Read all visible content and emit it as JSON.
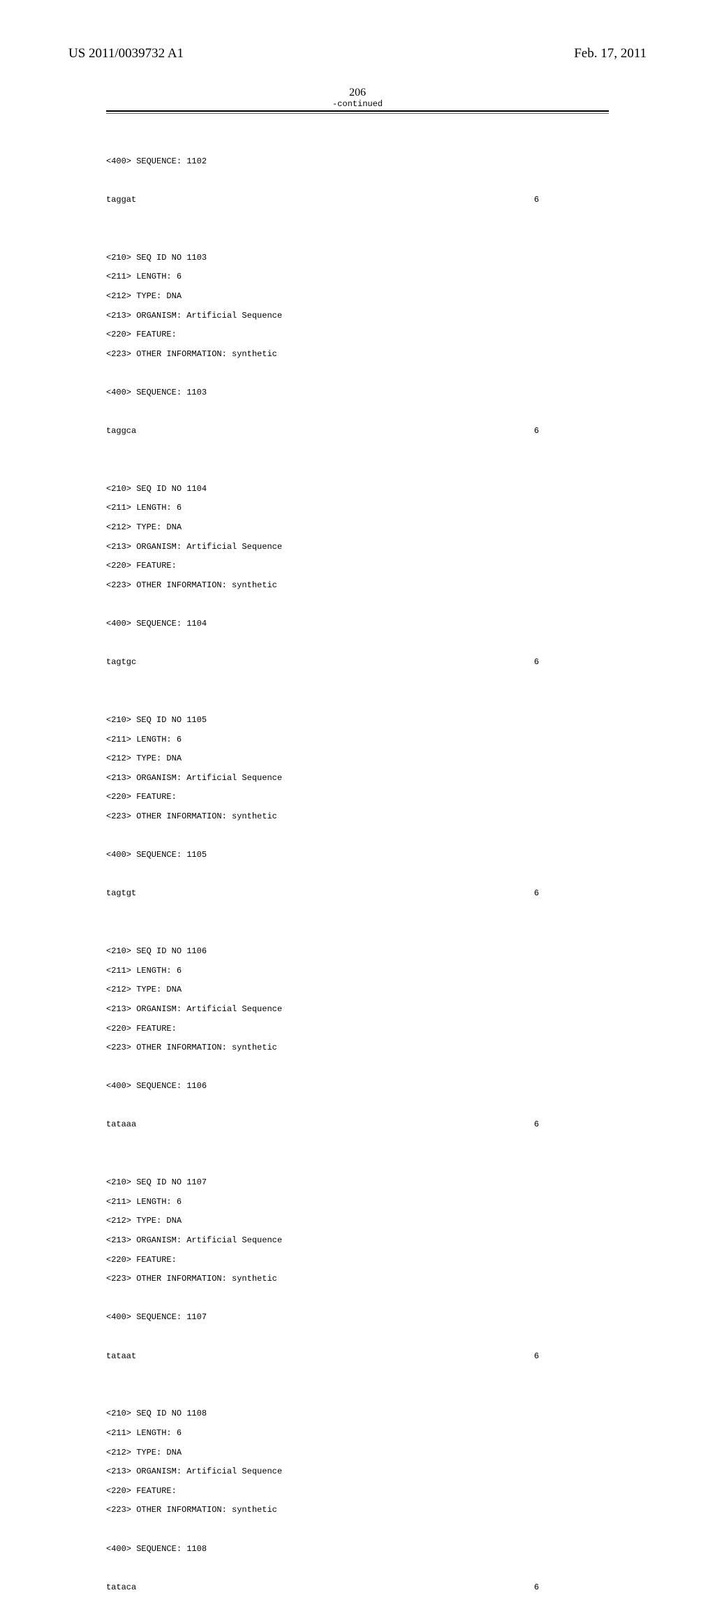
{
  "header": {
    "publication_number": "US 2011/0039732 A1",
    "publication_date": "Feb. 17, 2011"
  },
  "page_number": "206",
  "continued_label": "-continued",
  "entries": [
    {
      "pre_sequence": "<400> SEQUENCE: 1102",
      "seq": "taggat",
      "len": "6",
      "header": [
        "<210> SEQ ID NO 1103",
        "<211> LENGTH: 6",
        "<212> TYPE: DNA",
        "<213> ORGANISM: Artificial Sequence",
        "<220> FEATURE:",
        "<223> OTHER INFORMATION: synthetic"
      ],
      "post_sequence": "<400> SEQUENCE: 1103",
      "post_seq": "taggca",
      "post_len": "6"
    },
    {
      "header": [
        "<210> SEQ ID NO 1104",
        "<211> LENGTH: 6",
        "<212> TYPE: DNA",
        "<213> ORGANISM: Artificial Sequence",
        "<220> FEATURE:",
        "<223> OTHER INFORMATION: synthetic"
      ],
      "post_sequence": "<400> SEQUENCE: 1104",
      "post_seq": "tagtgc",
      "post_len": "6"
    },
    {
      "header": [
        "<210> SEQ ID NO 1105",
        "<211> LENGTH: 6",
        "<212> TYPE: DNA",
        "<213> ORGANISM: Artificial Sequence",
        "<220> FEATURE:",
        "<223> OTHER INFORMATION: synthetic"
      ],
      "post_sequence": "<400> SEQUENCE: 1105",
      "post_seq": "tagtgt",
      "post_len": "6"
    },
    {
      "header": [
        "<210> SEQ ID NO 1106",
        "<211> LENGTH: 6",
        "<212> TYPE: DNA",
        "<213> ORGANISM: Artificial Sequence",
        "<220> FEATURE:",
        "<223> OTHER INFORMATION: synthetic"
      ],
      "post_sequence": "<400> SEQUENCE: 1106",
      "post_seq": "tataaa",
      "post_len": "6"
    },
    {
      "header": [
        "<210> SEQ ID NO 1107",
        "<211> LENGTH: 6",
        "<212> TYPE: DNA",
        "<213> ORGANISM: Artificial Sequence",
        "<220> FEATURE:",
        "<223> OTHER INFORMATION: synthetic"
      ],
      "post_sequence": "<400> SEQUENCE: 1107",
      "post_seq": "tataat",
      "post_len": "6"
    },
    {
      "header": [
        "<210> SEQ ID NO 1108",
        "<211> LENGTH: 6",
        "<212> TYPE: DNA",
        "<213> ORGANISM: Artificial Sequence",
        "<220> FEATURE:",
        "<223> OTHER INFORMATION: synthetic"
      ],
      "post_sequence": "<400> SEQUENCE: 1108",
      "post_seq": "tataca",
      "post_len": "6"
    }
  ]
}
